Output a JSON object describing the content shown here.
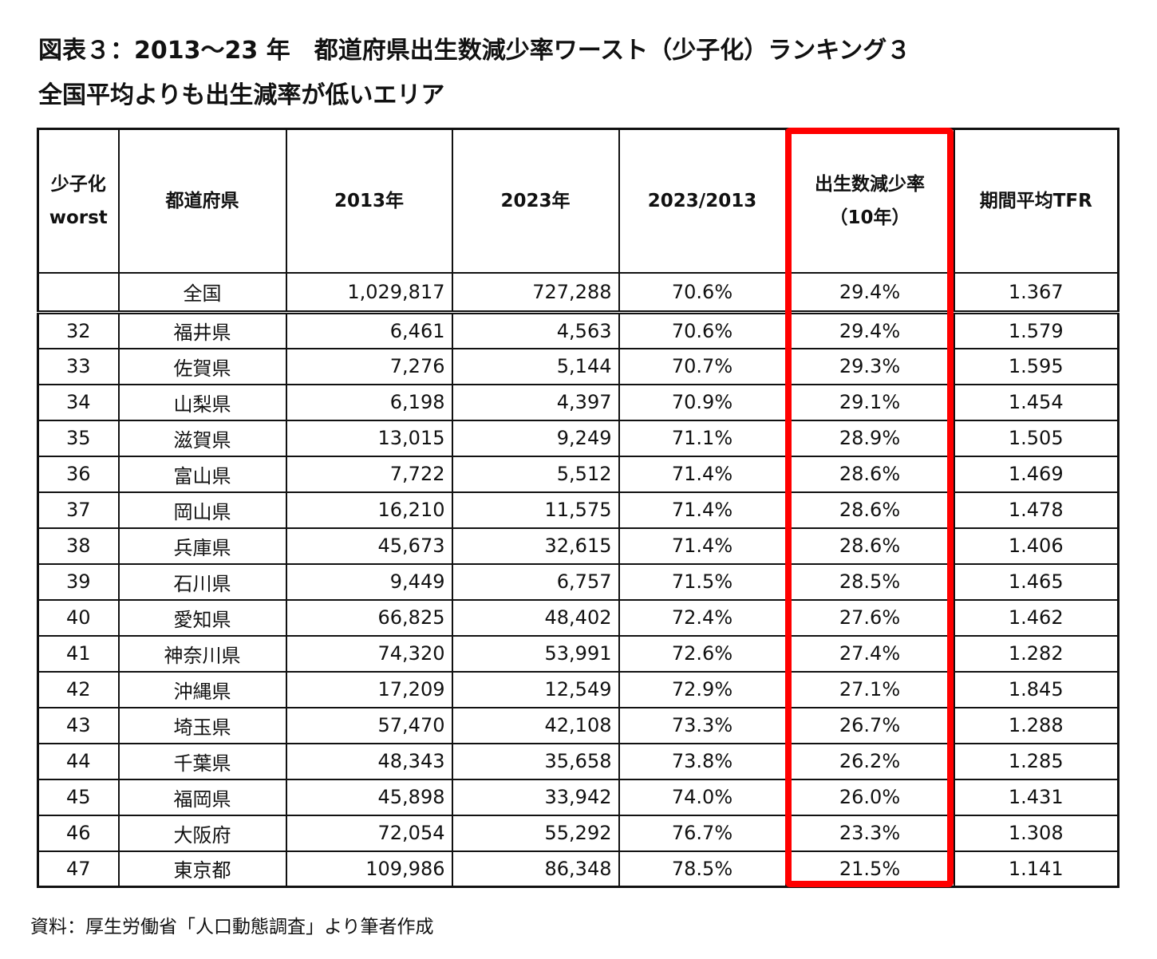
{
  "title_line1": "図表３：2013～23 年　都道府県出生数減少率ワースト（少子化）ランキング３",
  "title_line2": "全国平均よりも出生減率が低いエリア",
  "source": "資料：厚生労働省「人口動態調査」より筆者作成",
  "highlight_color": "#ff0000",
  "chart_data": {
    "type": "table",
    "columns": [
      {
        "key": "rank",
        "label_lines": [
          "少子化",
          "worst"
        ]
      },
      {
        "key": "pref",
        "label_lines": [
          "都道府県"
        ]
      },
      {
        "key": "y2013",
        "label_lines": [
          "2013年"
        ]
      },
      {
        "key": "y2023",
        "label_lines": [
          "2023年"
        ]
      },
      {
        "key": "ratio",
        "label_lines": [
          "2023/2013"
        ]
      },
      {
        "key": "decline",
        "label_lines": [
          "出生数減少率",
          "（10年）"
        ]
      },
      {
        "key": "tfr",
        "label_lines": [
          "期間平均TFR"
        ]
      }
    ],
    "national": {
      "rank": "",
      "pref": "全国",
      "y2013": "1,029,817",
      "y2023": "727,288",
      "ratio": "70.6%",
      "decline": "29.4%",
      "tfr": "1.367"
    },
    "rows": [
      {
        "rank": "32",
        "pref": "福井県",
        "y2013": "6,461",
        "y2023": "4,563",
        "ratio": "70.6%",
        "decline": "29.4%",
        "tfr": "1.579"
      },
      {
        "rank": "33",
        "pref": "佐賀県",
        "y2013": "7,276",
        "y2023": "5,144",
        "ratio": "70.7%",
        "decline": "29.3%",
        "tfr": "1.595"
      },
      {
        "rank": "34",
        "pref": "山梨県",
        "y2013": "6,198",
        "y2023": "4,397",
        "ratio": "70.9%",
        "decline": "29.1%",
        "tfr": "1.454"
      },
      {
        "rank": "35",
        "pref": "滋賀県",
        "y2013": "13,015",
        "y2023": "9,249",
        "ratio": "71.1%",
        "decline": "28.9%",
        "tfr": "1.505"
      },
      {
        "rank": "36",
        "pref": "富山県",
        "y2013": "7,722",
        "y2023": "5,512",
        "ratio": "71.4%",
        "decline": "28.6%",
        "tfr": "1.469"
      },
      {
        "rank": "37",
        "pref": "岡山県",
        "y2013": "16,210",
        "y2023": "11,575",
        "ratio": "71.4%",
        "decline": "28.6%",
        "tfr": "1.478"
      },
      {
        "rank": "38",
        "pref": "兵庫県",
        "y2013": "45,673",
        "y2023": "32,615",
        "ratio": "71.4%",
        "decline": "28.6%",
        "tfr": "1.406"
      },
      {
        "rank": "39",
        "pref": "石川県",
        "y2013": "9,449",
        "y2023": "6,757",
        "ratio": "71.5%",
        "decline": "28.5%",
        "tfr": "1.465"
      },
      {
        "rank": "40",
        "pref": "愛知県",
        "y2013": "66,825",
        "y2023": "48,402",
        "ratio": "72.4%",
        "decline": "27.6%",
        "tfr": "1.462"
      },
      {
        "rank": "41",
        "pref": "神奈川県",
        "y2013": "74,320",
        "y2023": "53,991",
        "ratio": "72.6%",
        "decline": "27.4%",
        "tfr": "1.282"
      },
      {
        "rank": "42",
        "pref": "沖縄県",
        "y2013": "17,209",
        "y2023": "12,549",
        "ratio": "72.9%",
        "decline": "27.1%",
        "tfr": "1.845"
      },
      {
        "rank": "43",
        "pref": "埼玉県",
        "y2013": "57,470",
        "y2023": "42,108",
        "ratio": "73.3%",
        "decline": "26.7%",
        "tfr": "1.288"
      },
      {
        "rank": "44",
        "pref": "千葉県",
        "y2013": "48,343",
        "y2023": "35,658",
        "ratio": "73.8%",
        "decline": "26.2%",
        "tfr": "1.285"
      },
      {
        "rank": "45",
        "pref": "福岡県",
        "y2013": "45,898",
        "y2023": "33,942",
        "ratio": "74.0%",
        "decline": "26.0%",
        "tfr": "1.431"
      },
      {
        "rank": "46",
        "pref": "大阪府",
        "y2013": "72,054",
        "y2023": "55,292",
        "ratio": "76.7%",
        "decline": "23.3%",
        "tfr": "1.308"
      },
      {
        "rank": "47",
        "pref": "東京都",
        "y2013": "109,986",
        "y2023": "86,348",
        "ratio": "78.5%",
        "decline": "21.5%",
        "tfr": "1.141"
      }
    ]
  }
}
